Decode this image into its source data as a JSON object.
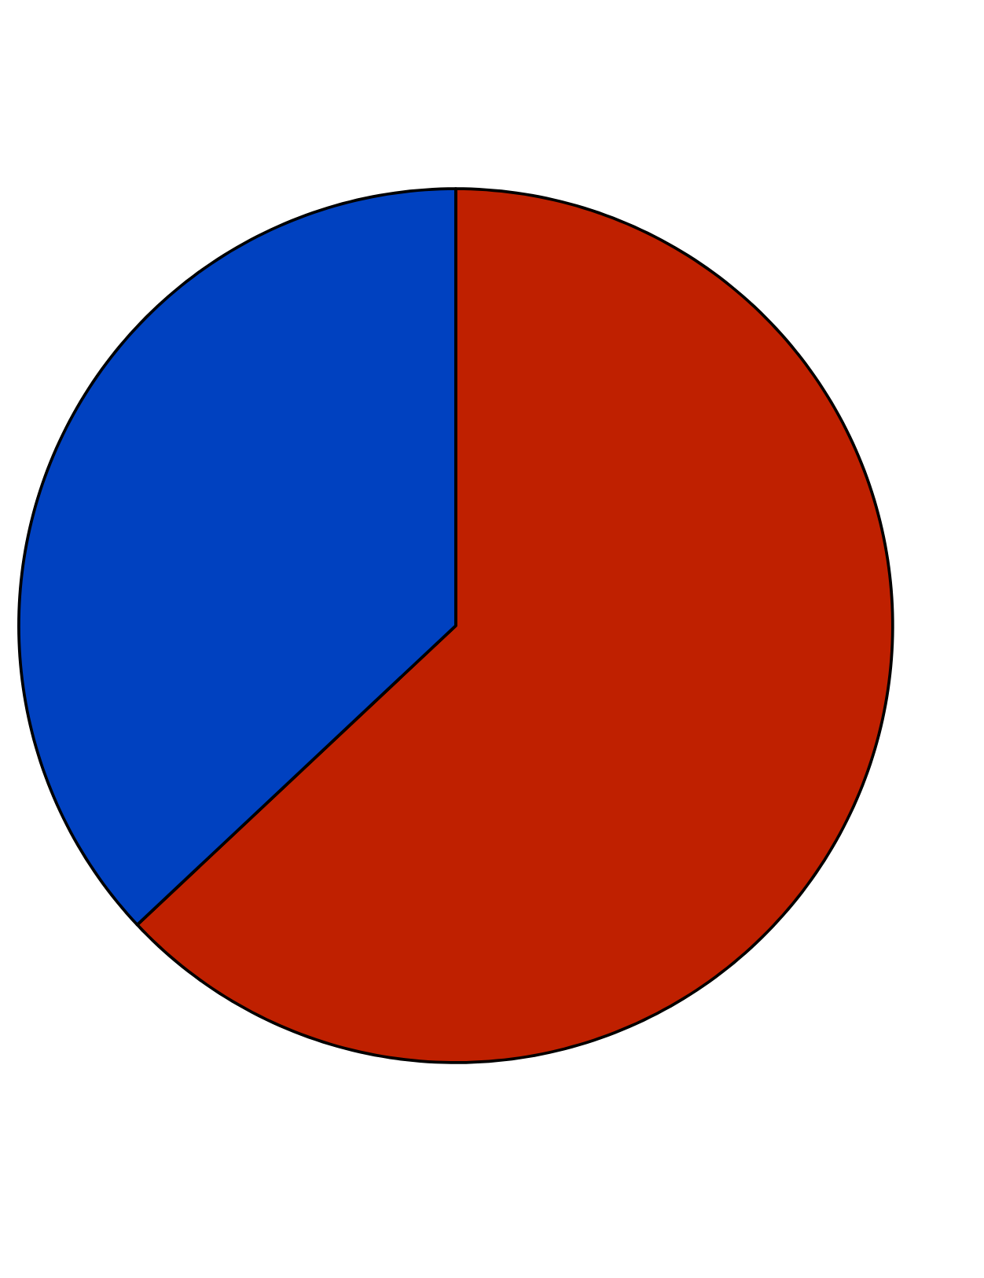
{
  "chart_data": {
    "type": "pie",
    "categories": [
      null,
      null
    ],
    "values": [
      63,
      37
    ],
    "colors": [
      "#bf2000",
      "#0041c0"
    ]
  }
}
